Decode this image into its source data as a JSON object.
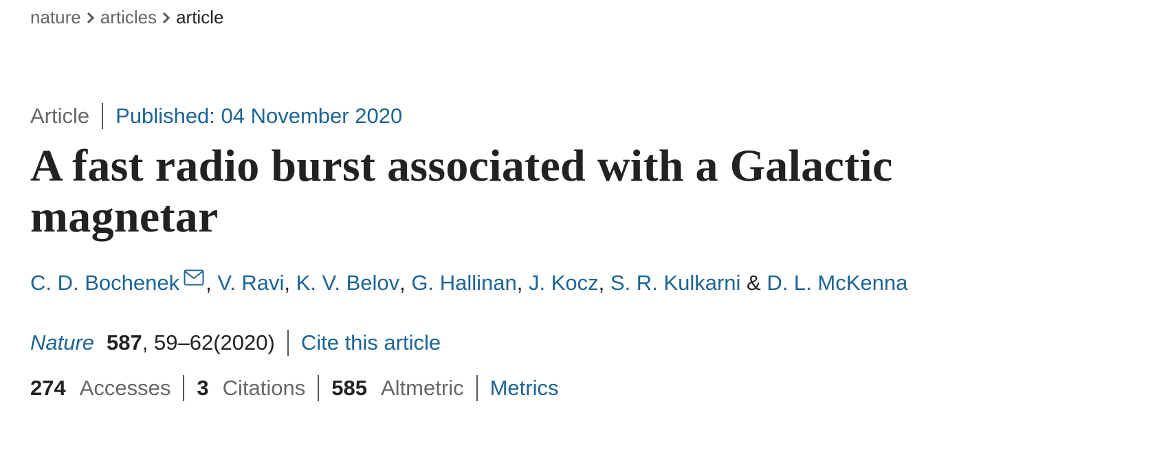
{
  "breadcrumbs": [
    "nature",
    "articles",
    "article"
  ],
  "article_type": "Article",
  "published": "Published: 04 November 2020",
  "title": "A fast radio burst associated with a Galactic magnetar",
  "authors": {
    "names": [
      "C. D. Bochenek",
      "V. Ravi",
      "K. V. Belov",
      "G. Hallinan",
      "J. Kocz",
      "S. R. Kulkarni",
      "D. L. McKenna"
    ],
    "separators": [
      ", ",
      ", ",
      ", ",
      ", ",
      ", ",
      " & "
    ]
  },
  "journal": {
    "name": "Nature",
    "volume": 587,
    "pages": ", 59–62",
    "year": "(2020)",
    "cite": "Cite this article"
  },
  "metrics": [
    {
      "value": 274,
      "label": "Accesses"
    },
    {
      "value": 3,
      "label": "Citations"
    },
    {
      "value": 585,
      "label": "Altmetric"
    }
  ],
  "metrics_link": "Metrics"
}
